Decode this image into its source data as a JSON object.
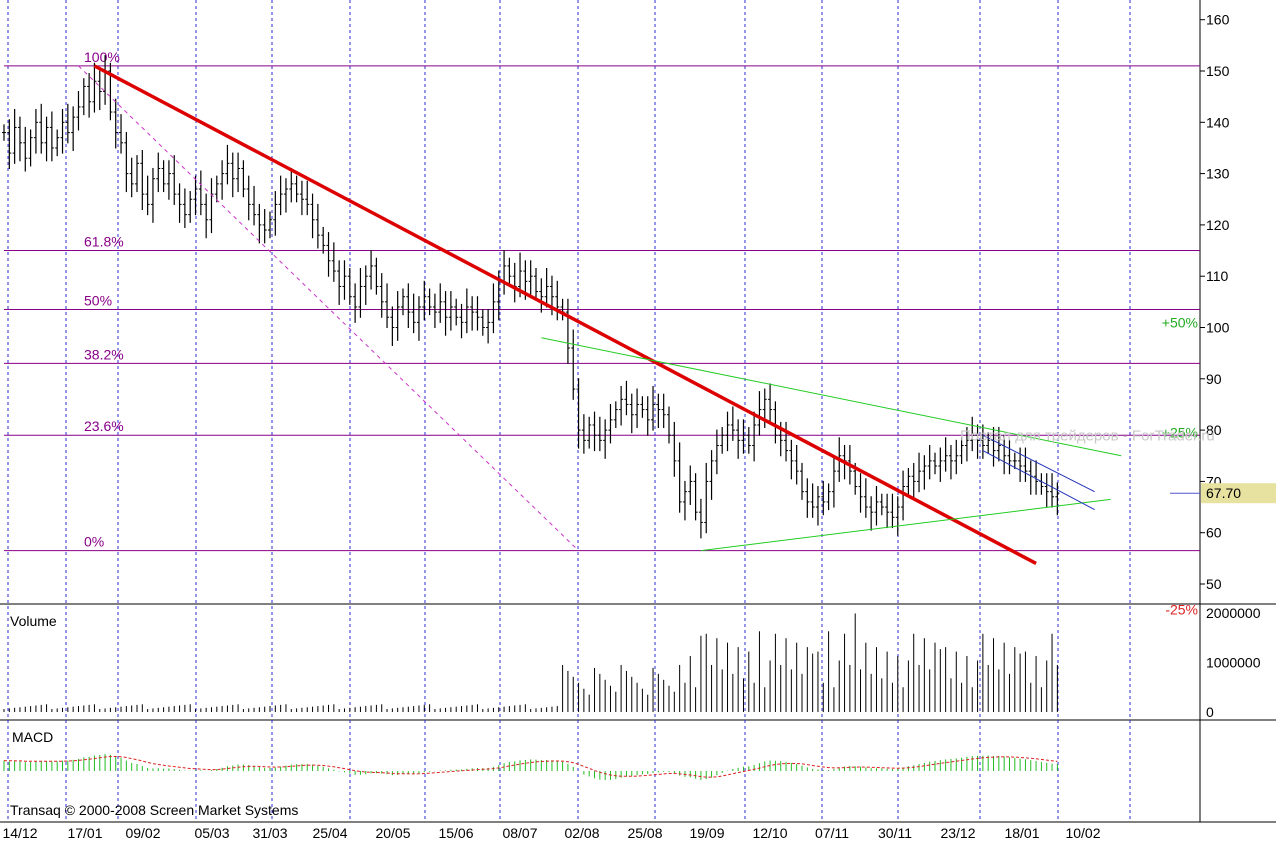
{
  "chart_data": [
    {
      "type": "ohlc",
      "panel": "price",
      "ylim": [
        45,
        163
      ],
      "y_ticks": [
        "50",
        "60",
        "70",
        "80",
        "90",
        "100",
        "110",
        "120",
        "130",
        "140",
        "150",
        "160"
      ],
      "x_tick_labels": [
        "14/12",
        "17/01",
        "09/02",
        "05/03",
        "31/03",
        "25/04",
        "20/05",
        "15/06",
        "08/07",
        "02/08",
        "25/08",
        "19/09",
        "12/10",
        "07/11",
        "30/11",
        "23/12",
        "18/01",
        "10/02"
      ],
      "last_price": "67.70",
      "watermark": "Портал для трейдеров - ForTrader.ru",
      "fibonacci_levels": [
        {
          "label": "100%",
          "value": 151
        },
        {
          "label": "61.8%",
          "value": 115
        },
        {
          "label": "50%",
          "value": 103.5
        },
        {
          "label": "38.2%",
          "value": 93
        },
        {
          "label": "23.6%",
          "value": 79
        },
        {
          "label": "0%",
          "value": 56.5
        }
      ],
      "projection_labels": [
        {
          "label": "+50%",
          "value": 101
        },
        {
          "label": "+25%",
          "value": 79.5
        },
        {
          "label": "-25%",
          "value": 45
        }
      ],
      "trendlines": [
        {
          "color": "#dd0000",
          "from": {
            "bar": 17,
            "value": 151
          },
          "to": {
            "bar": 194,
            "value": 54
          }
        },
        {
          "color": "#22cc22",
          "from": {
            "bar": 101,
            "value": 98
          },
          "to": {
            "bar": 210,
            "value": 75
          }
        },
        {
          "color": "#22cc22",
          "from": {
            "bar": 131,
            "value": 56.5
          },
          "to": {
            "bar": 208,
            "value": 66.5
          }
        },
        {
          "color": "#2233bb",
          "from": {
            "bar": 184,
            "value": 79
          },
          "to": {
            "bar": 205,
            "value": 68
          }
        },
        {
          "color": "#2233bb",
          "from": {
            "bar": 184,
            "value": 76
          },
          "to": {
            "bar": 205,
            "value": 64.5
          }
        },
        {
          "color": "#cc33cc",
          "dashed": true,
          "from": {
            "bar": 14,
            "value": 151
          },
          "to": {
            "bar": 108,
            "value": 56.5
          }
        }
      ],
      "closes": [
        138,
        134,
        139,
        136,
        133,
        137,
        140,
        136,
        139,
        135,
        137,
        140,
        138,
        141,
        143,
        147,
        144,
        148,
        146,
        150,
        142,
        138,
        136,
        130,
        128,
        132,
        126,
        124,
        129,
        131,
        128,
        130,
        126,
        124,
        122,
        125,
        127,
        124,
        121,
        126,
        128,
        130,
        132,
        129,
        131,
        127,
        124,
        122,
        120,
        119,
        121,
        124,
        126,
        127,
        128,
        126,
        125,
        124,
        121,
        118,
        116,
        113,
        111,
        108,
        110,
        106,
        104,
        108,
        110,
        112,
        108,
        105,
        102,
        100,
        104,
        106,
        103,
        101,
        104,
        106,
        104,
        103,
        105,
        102,
        104,
        102,
        101,
        104,
        103,
        102,
        100,
        101,
        105,
        109,
        112,
        110,
        108,
        111,
        109,
        110,
        107,
        106,
        108,
        106,
        104,
        103,
        96,
        88,
        80,
        78,
        81,
        79,
        78,
        80,
        82,
        84,
        86,
        85,
        83,
        85,
        84,
        82,
        85,
        84,
        83,
        79,
        74,
        66,
        68,
        70,
        64,
        62,
        70,
        74,
        77,
        79,
        81,
        80,
        78,
        79,
        77,
        81,
        84,
        86,
        84,
        79,
        78,
        76,
        74,
        72,
        68,
        66,
        65,
        67,
        66,
        68,
        72,
        75,
        74,
        72,
        69,
        67,
        65,
        64,
        66,
        65,
        64,
        63,
        65,
        69,
        71,
        70,
        72,
        73,
        74,
        73,
        74,
        75,
        74,
        75,
        77,
        78,
        79,
        78,
        77,
        78,
        76,
        77,
        75,
        74,
        74,
        73,
        72,
        71,
        70,
        69,
        68,
        67,
        67.7
      ],
      "volume": {
        "title": "Volume",
        "ylim": [
          0,
          2100000
        ],
        "y_ticks": [
          "0",
          "1000000",
          "2000000"
        ]
      },
      "macd": {
        "title": "MACD"
      },
      "footer": "Transaq © 2000-2008 Screen Market Systems"
    }
  ]
}
